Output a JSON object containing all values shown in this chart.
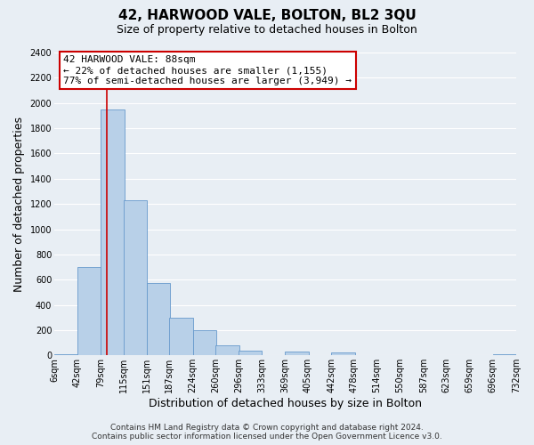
{
  "title": "42, HARWOOD VALE, BOLTON, BL2 3QU",
  "subtitle": "Size of property relative to detached houses in Bolton",
  "xlabel": "Distribution of detached houses by size in Bolton",
  "ylabel": "Number of detached properties",
  "bar_left_edges": [
    6,
    42,
    79,
    115,
    151,
    187,
    224,
    260,
    296,
    333,
    369,
    405,
    442,
    478,
    514,
    550,
    587,
    623,
    659,
    696
  ],
  "bar_heights": [
    10,
    700,
    1950,
    1230,
    570,
    300,
    200,
    80,
    40,
    0,
    30,
    0,
    20,
    0,
    0,
    0,
    0,
    0,
    0,
    10
  ],
  "bin_width": 37,
  "bar_color": "#b8d0e8",
  "bar_edge_color": "#6699cc",
  "vline_x": 88,
  "vline_color": "#cc0000",
  "ylim": [
    0,
    2400
  ],
  "yticks": [
    0,
    200,
    400,
    600,
    800,
    1000,
    1200,
    1400,
    1600,
    1800,
    2000,
    2200,
    2400
  ],
  "xtick_labels": [
    "6sqm",
    "42sqm",
    "79sqm",
    "115sqm",
    "151sqm",
    "187sqm",
    "224sqm",
    "260sqm",
    "296sqm",
    "333sqm",
    "369sqm",
    "405sqm",
    "442sqm",
    "478sqm",
    "514sqm",
    "550sqm",
    "587sqm",
    "623sqm",
    "659sqm",
    "696sqm",
    "732sqm"
  ],
  "annotation_box_text": "42 HARWOOD VALE: 88sqm\n← 22% of detached houses are smaller (1,155)\n77% of semi-detached houses are larger (3,949) →",
  "annotation_box_color": "#cc0000",
  "annotation_box_fill": "#ffffff",
  "footer_line1": "Contains HM Land Registry data © Crown copyright and database right 2024.",
  "footer_line2": "Contains public sector information licensed under the Open Government Licence v3.0.",
  "bg_color": "#e8eef4",
  "plot_bg_color": "#e8eef4",
  "grid_color": "#ffffff",
  "title_fontsize": 11,
  "subtitle_fontsize": 9,
  "axis_label_fontsize": 9,
  "tick_fontsize": 7,
  "annotation_fontsize": 8,
  "footer_fontsize": 6.5
}
